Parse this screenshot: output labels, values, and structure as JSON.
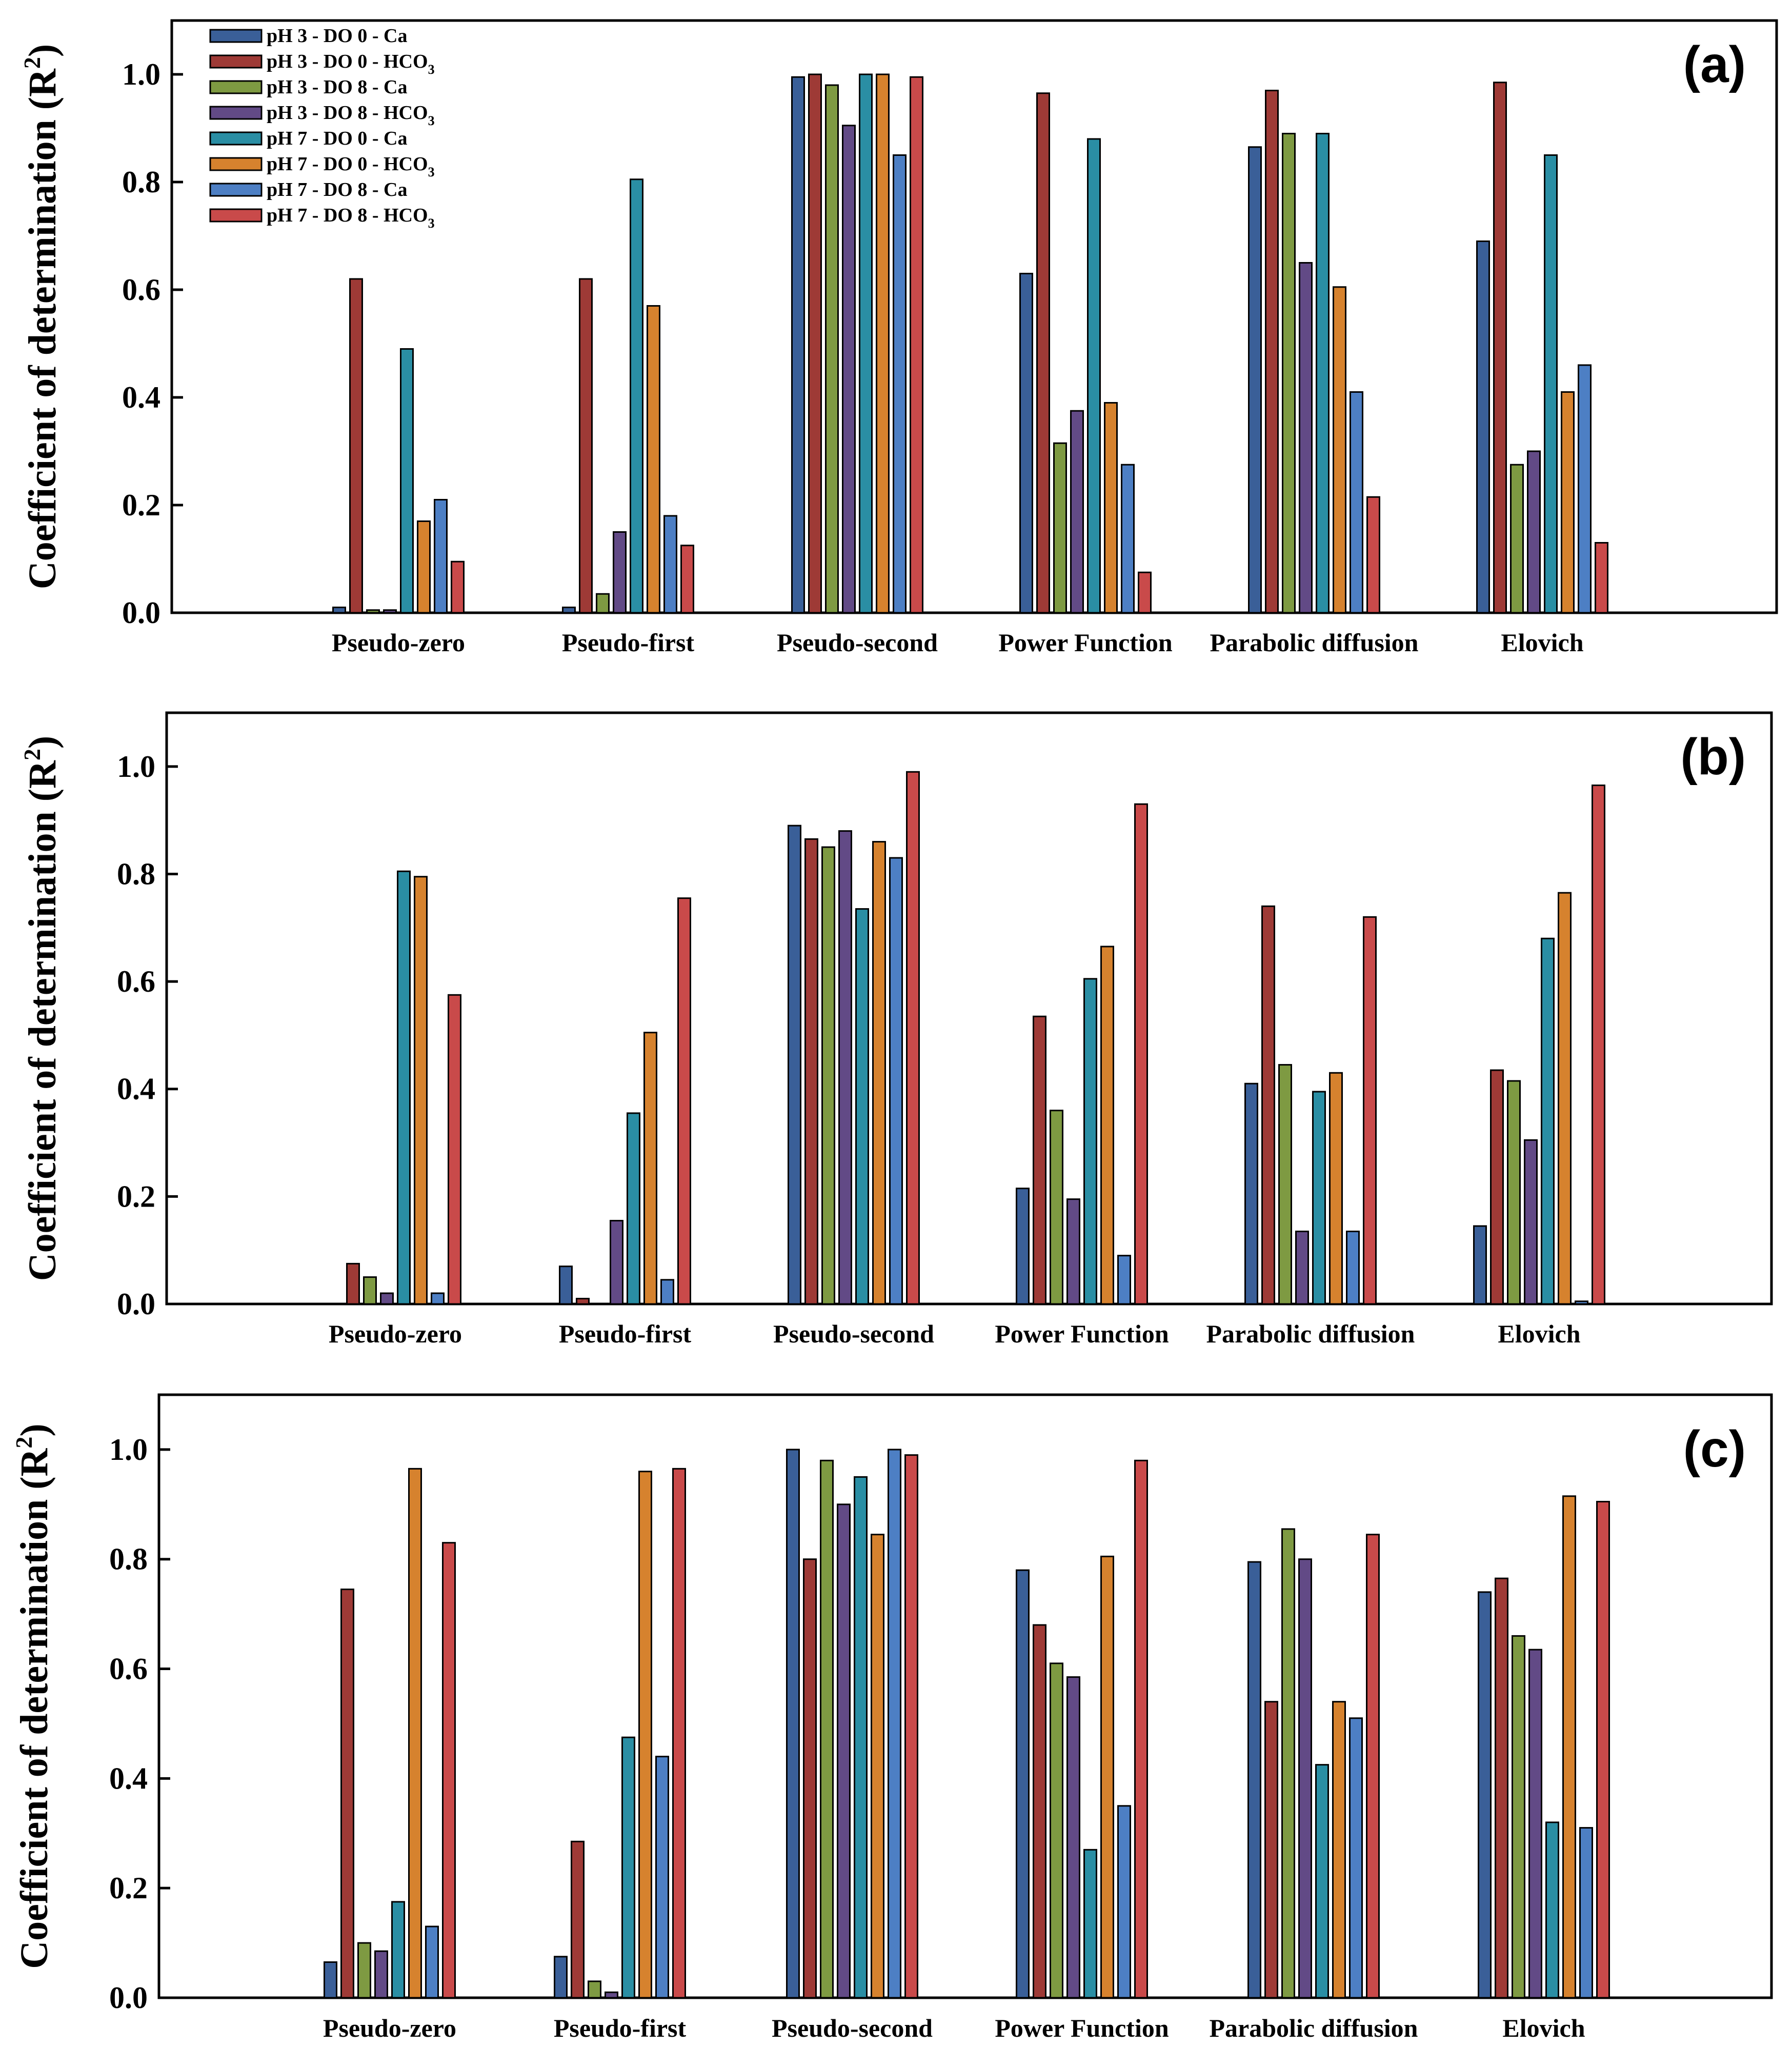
{
  "chart_data": [
    {
      "panel": "(a)",
      "type": "bar",
      "ylabel": "Coefficient of determination (R",
      "ylabel_sup": "2",
      "ylabel_close": ")",
      "ylim": [
        0,
        1.1
      ],
      "yticks": [
        "0.0",
        "0.2",
        "0.4",
        "0.6",
        "0.8",
        "1.0"
      ],
      "categories": [
        "Pseudo-zero",
        "Pseudo-first",
        "Pseudo-second",
        "Power Function",
        "Parabolic diffusion",
        "Elovich"
      ],
      "series": [
        {
          "name": "pH 3 - DO 0 - Ca",
          "values": [
            0.01,
            0.01,
            0.995,
            0.63,
            0.865,
            0.69
          ]
        },
        {
          "name": "pH 3 - DO 0 - HCO3",
          "values": [
            0.62,
            0.62,
            1.0,
            0.965,
            0.97,
            0.985
          ]
        },
        {
          "name": "pH 3 - DO 8 - Ca",
          "values": [
            0.005,
            0.035,
            0.98,
            0.315,
            0.89,
            0.275
          ]
        },
        {
          "name": "pH 3 - DO 8 - HCO3",
          "values": [
            0.005,
            0.15,
            0.905,
            0.375,
            0.65,
            0.3
          ]
        },
        {
          "name": "pH 7 - DO 0 - Ca",
          "values": [
            0.49,
            0.805,
            1.0,
            0.88,
            0.89,
            0.85
          ]
        },
        {
          "name": "pH 7 - DO 0 - HCO3",
          "values": [
            0.17,
            0.57,
            1.0,
            0.39,
            0.605,
            0.41
          ]
        },
        {
          "name": "pH 7 - DO 8 - Ca",
          "values": [
            0.21,
            0.18,
            0.85,
            0.275,
            0.41,
            0.46
          ]
        },
        {
          "name": "pH 7 - DO 8 - HCO3",
          "values": [
            0.095,
            0.125,
            0.995,
            0.075,
            0.215,
            0.13
          ]
        }
      ],
      "legend": [
        {
          "base": "pH 3 - DO 0 - Ca",
          "sub": ""
        },
        {
          "base": "pH 3 - DO 0 - HCO",
          "sub": "3"
        },
        {
          "base": "pH 3 - DO 8 - Ca",
          "sub": ""
        },
        {
          "base": "pH 3 - DO 8 - HCO",
          "sub": "3"
        },
        {
          "base": "pH 7 - DO 0 - Ca",
          "sub": ""
        },
        {
          "base": "pH 7 - DO 0 - HCO",
          "sub": "3"
        },
        {
          "base": "pH 7 - DO 8 - Ca",
          "sub": ""
        },
        {
          "base": "pH 7 - DO 8 - HCO",
          "sub": "3"
        }
      ],
      "legend_position": "top-left"
    },
    {
      "panel": "(b)",
      "type": "bar",
      "ylabel": "Coefficient of determination (R",
      "ylabel_sup": "2",
      "ylabel_close": ")",
      "ylim": [
        0,
        1.1
      ],
      "yticks": [
        "0.0",
        "0.2",
        "0.4",
        "0.6",
        "0.8",
        "1.0"
      ],
      "categories": [
        "Pseudo-zero",
        "Pseudo-first",
        "Pseudo-second",
        "Power Function",
        "Parabolic diffusion",
        "Elovich"
      ],
      "series": [
        {
          "name": "pH 3 - DO 0 - Ca",
          "values": [
            0.0,
            0.07,
            0.89,
            0.215,
            0.41,
            0.145
          ]
        },
        {
          "name": "pH 3 - DO 0 - HCO3",
          "values": [
            0.075,
            0.01,
            0.865,
            0.535,
            0.74,
            0.435
          ]
        },
        {
          "name": "pH 3 - DO 8 - Ca",
          "values": [
            0.05,
            0.0,
            0.85,
            0.36,
            0.445,
            0.415
          ]
        },
        {
          "name": "pH 3 - DO 8 - HCO3",
          "values": [
            0.02,
            0.155,
            0.88,
            0.195,
            0.135,
            0.305
          ]
        },
        {
          "name": "pH 7 - DO 0 - Ca",
          "values": [
            0.805,
            0.355,
            0.735,
            0.605,
            0.395,
            0.68
          ]
        },
        {
          "name": "pH 7 - DO 0 - HCO3",
          "values": [
            0.795,
            0.505,
            0.86,
            0.665,
            0.43,
            0.765
          ]
        },
        {
          "name": "pH 7 - DO 8 - Ca",
          "values": [
            0.02,
            0.045,
            0.83,
            0.09,
            0.135,
            0.005
          ]
        },
        {
          "name": "pH 7 - DO 8 - HCO3",
          "values": [
            0.575,
            0.755,
            0.99,
            0.93,
            0.72,
            0.965
          ]
        }
      ]
    },
    {
      "panel": "(c)",
      "type": "bar",
      "ylabel": "Coefficient of determination (R",
      "ylabel_sup": "2",
      "ylabel_close": ")",
      "ylim": [
        0,
        1.1
      ],
      "yticks": [
        "0.0",
        "0.2",
        "0.4",
        "0.6",
        "0.8",
        "1.0"
      ],
      "categories": [
        "Pseudo-zero",
        "Pseudo-first",
        "Pseudo-second",
        "Power Function",
        "Parabolic diffusion",
        "Elovich"
      ],
      "series": [
        {
          "name": "pH 3 - DO 0 - Ca",
          "values": [
            0.065,
            0.075,
            1.0,
            0.78,
            0.795,
            0.74
          ]
        },
        {
          "name": "pH 3 - DO 0 - HCO3",
          "values": [
            0.745,
            0.285,
            0.8,
            0.68,
            0.54,
            0.765
          ]
        },
        {
          "name": "pH 3 - DO 8 - Ca",
          "values": [
            0.1,
            0.03,
            0.98,
            0.61,
            0.855,
            0.66
          ]
        },
        {
          "name": "pH 3 - DO 8 - HCO3",
          "values": [
            0.085,
            0.01,
            0.9,
            0.585,
            0.8,
            0.635
          ]
        },
        {
          "name": "pH 7 - DO 0 - Ca",
          "values": [
            0.175,
            0.475,
            0.95,
            0.27,
            0.425,
            0.32
          ]
        },
        {
          "name": "pH 7 - DO 0 - HCO3",
          "values": [
            0.965,
            0.96,
            0.845,
            0.805,
            0.54,
            0.915
          ]
        },
        {
          "name": "pH 7 - DO 8 - Ca",
          "values": [
            0.13,
            0.44,
            1.0,
            0.35,
            0.51,
            0.31
          ]
        },
        {
          "name": "pH 7 - DO 8 - HCO3",
          "values": [
            0.83,
            0.965,
            0.99,
            0.98,
            0.845,
            0.905
          ]
        }
      ]
    }
  ],
  "colors": {
    "series": [
      "#3a5f98",
      "#9e3a36",
      "#7e9a42",
      "#624a86",
      "#2a8ea4",
      "#d6822e",
      "#4d7fc4",
      "#c94a4a"
    ],
    "axis": "#000000",
    "background": "#ffffff"
  }
}
